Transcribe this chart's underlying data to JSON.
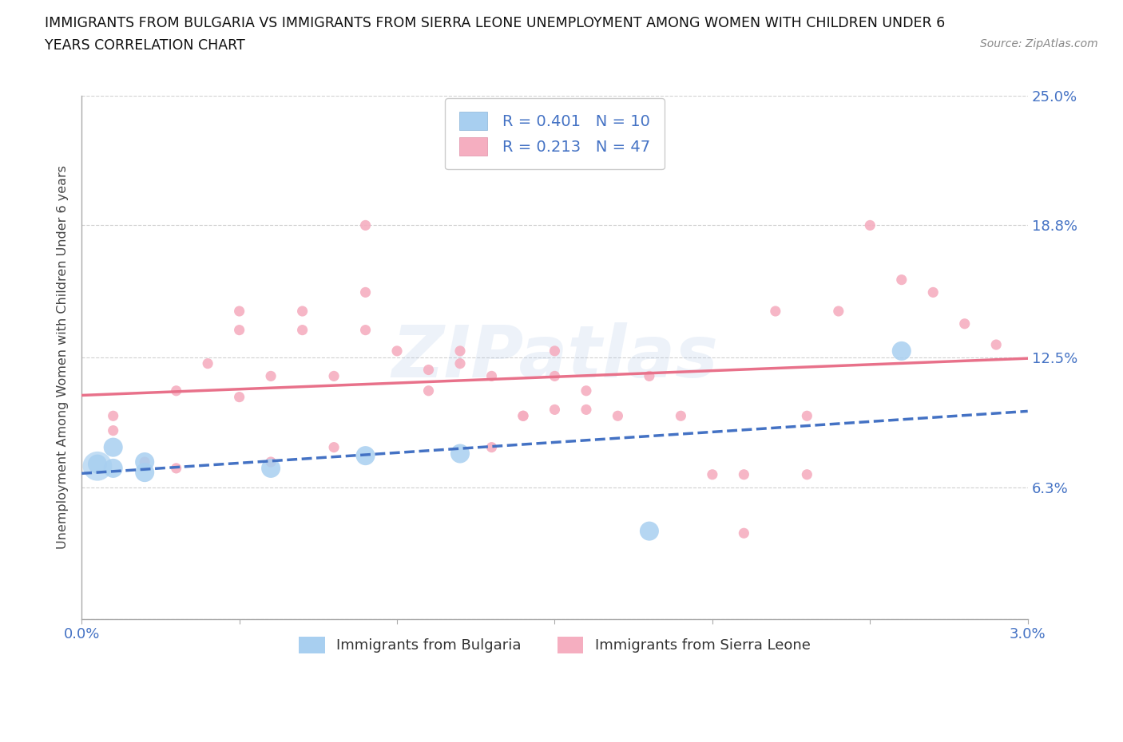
{
  "title_line1": "IMMIGRANTS FROM BULGARIA VS IMMIGRANTS FROM SIERRA LEONE UNEMPLOYMENT AMONG WOMEN WITH CHILDREN UNDER 6",
  "title_line2": "YEARS CORRELATION CHART",
  "source": "Source: ZipAtlas.com",
  "ylabel": "Unemployment Among Women with Children Under 6 years",
  "xlim": [
    0.0,
    0.03
  ],
  "ylim": [
    0.0,
    0.25
  ],
  "ytick_vals": [
    0.0,
    0.063,
    0.125,
    0.188,
    0.25
  ],
  "ytick_labels": [
    "",
    "6.3%",
    "12.5%",
    "18.8%",
    "25.0%"
  ],
  "xtick_vals": [
    0.0,
    0.005,
    0.01,
    0.015,
    0.02,
    0.025,
    0.03
  ],
  "xtick_labels": [
    "0.0%",
    "",
    "",
    "",
    "",
    "",
    "3.0%"
  ],
  "r_bulgaria": 0.401,
  "n_bulgaria": 10,
  "r_sierra": 0.213,
  "n_sierra": 47,
  "color_bulgaria": "#a8cff0",
  "color_sierra": "#f5aec0",
  "color_bulgaria_line": "#4472c4",
  "color_sierra_line": "#e8718a",
  "color_axis_label": "#4472c4",
  "bg_color": "#ffffff",
  "grid_color": "#d0d0d0",
  "bulgaria_x": [
    0.0005,
    0.001,
    0.001,
    0.002,
    0.006,
    0.009,
    0.002,
    0.012,
    0.018,
    0.026
  ],
  "bulgaria_y": [
    0.074,
    0.082,
    0.072,
    0.075,
    0.072,
    0.078,
    0.07,
    0.079,
    0.042,
    0.128
  ],
  "sierra_x": [
    0.001,
    0.001,
    0.002,
    0.003,
    0.003,
    0.004,
    0.005,
    0.005,
    0.005,
    0.006,
    0.006,
    0.007,
    0.007,
    0.008,
    0.008,
    0.009,
    0.009,
    0.009,
    0.01,
    0.011,
    0.011,
    0.012,
    0.012,
    0.013,
    0.013,
    0.014,
    0.014,
    0.015,
    0.015,
    0.015,
    0.016,
    0.016,
    0.017,
    0.018,
    0.019,
    0.02,
    0.021,
    0.021,
    0.022,
    0.023,
    0.023,
    0.024,
    0.025,
    0.026,
    0.027,
    0.028,
    0.029
  ],
  "sierra_y": [
    0.09,
    0.097,
    0.075,
    0.072,
    0.109,
    0.122,
    0.138,
    0.147,
    0.106,
    0.116,
    0.075,
    0.138,
    0.147,
    0.116,
    0.082,
    0.156,
    0.188,
    0.138,
    0.128,
    0.119,
    0.109,
    0.128,
    0.122,
    0.116,
    0.082,
    0.097,
    0.097,
    0.128,
    0.116,
    0.1,
    0.109,
    0.1,
    0.097,
    0.116,
    0.097,
    0.069,
    0.069,
    0.041,
    0.147,
    0.097,
    0.069,
    0.147,
    0.188,
    0.162,
    0.156,
    0.141,
    0.131
  ]
}
